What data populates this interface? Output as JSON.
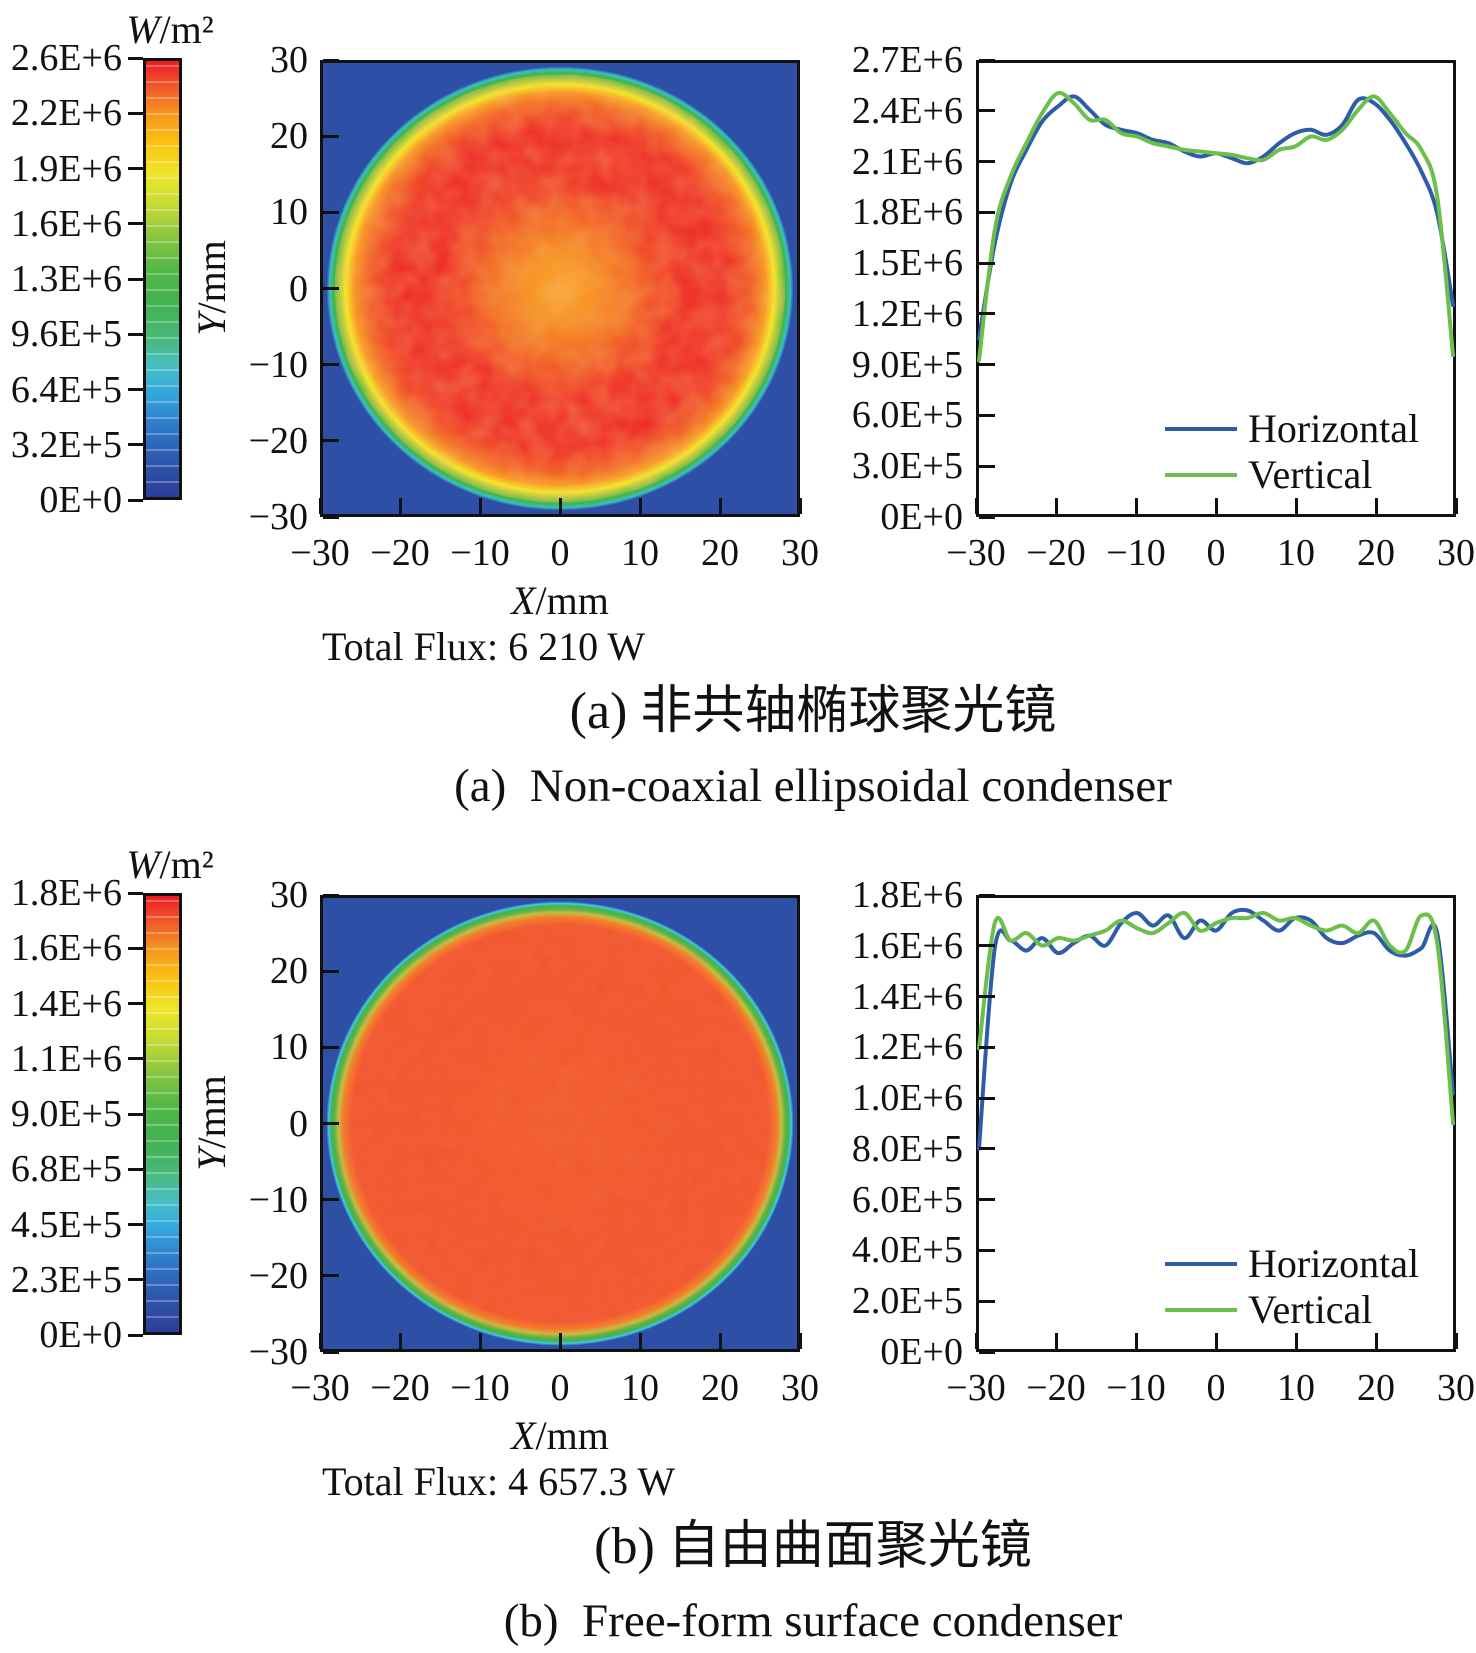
{
  "colors": {
    "line_blue": "#2F5CA8",
    "line_green": "#6CBF4B",
    "background_blue": "#2D4FA6",
    "spot_red": "#ED2424",
    "rim_green": "#3FB549",
    "frame": "#111111"
  },
  "panels": {
    "panel_a": {
      "colorbar": {
        "unit_var": "W",
        "unit_rest": "/m²",
        "tick_labels": [
          "2.6E+6",
          "2.2E+6",
          "1.9E+6",
          "1.6E+6",
          "1.3E+6",
          "9.6E+5",
          "6.4E+5",
          "3.2E+5",
          "0E+0"
        ]
      },
      "heatmap": {
        "y_tick_labels": [
          "30",
          "20",
          "10",
          "0",
          "−10",
          "−20",
          "−30"
        ],
        "x_tick_labels": [
          "−30",
          "−20",
          "−10",
          "0",
          "10",
          "20",
          "30"
        ],
        "x_var": "X",
        "x_unit": "/mm",
        "y_var": "Y",
        "y_unit": "/mm"
      },
      "profile": {
        "y_tick_labels": [
          "2.7E+6",
          "2.4E+6",
          "2.1E+6",
          "1.8E+6",
          "1.5E+6",
          "1.2E+6",
          "9.0E+5",
          "6.0E+5",
          "3.0E+5",
          "0E+0"
        ],
        "x_tick_labels": [
          "−30",
          "−20",
          "−10",
          "0",
          "10",
          "20",
          "30"
        ],
        "legend": [
          "Horizontal",
          "Vertical"
        ]
      },
      "total_flux": "Total Flux: 6 210 W",
      "caption_zh": "(a) 非共轴椭球聚光镜",
      "caption_en": "(a)  Non-coaxial ellipsoidal condenser"
    },
    "panel_b": {
      "colorbar": {
        "unit_var": "W",
        "unit_rest": "/m²",
        "tick_labels": [
          "1.8E+6",
          "1.6E+6",
          "1.4E+6",
          "1.1E+6",
          "9.0E+5",
          "6.8E+5",
          "4.5E+5",
          "2.3E+5",
          "0E+0"
        ]
      },
      "heatmap": {
        "y_tick_labels": [
          "30",
          "20",
          "10",
          "0",
          "−10",
          "−20",
          "−30"
        ],
        "x_tick_labels": [
          "−30",
          "−20",
          "−10",
          "0",
          "10",
          "20",
          "30"
        ],
        "x_var": "X",
        "x_unit": "/mm",
        "y_var": "Y",
        "y_unit": "/mm"
      },
      "profile": {
        "y_tick_labels": [
          "1.8E+6",
          "1.6E+6",
          "1.4E+6",
          "1.2E+6",
          "1.0E+6",
          "8.0E+5",
          "6.0E+5",
          "4.0E+5",
          "2.0E+5",
          "0E+0"
        ],
        "x_tick_labels": [
          "−30",
          "−20",
          "−10",
          "0",
          "10",
          "20",
          "30"
        ],
        "legend": [
          "Horizontal",
          "Vertical"
        ]
      },
      "total_flux": "Total Flux: 4 657.3 W",
      "caption_zh": "(b) 自由曲面聚光镜",
      "caption_en": "(b)  Free-form surface condenser"
    }
  },
  "chart_data": [
    {
      "id": "heatmap_a",
      "type": "heatmap",
      "title": "Irradiance distribution, non-coaxial ellipsoidal condenser",
      "xlabel": "X/mm",
      "ylabel": "Y/mm",
      "xlim": [
        -30,
        30
      ],
      "ylim": [
        -30,
        30
      ],
      "colorbar_unit": "W/m²",
      "colorbar_ticks": [
        0,
        320000,
        640000,
        960000,
        1300000,
        1600000,
        1900000,
        2200000,
        2600000
      ],
      "spot_radius_mm": 30,
      "center_value": 2100000,
      "peak_ring_value": 2500000
    },
    {
      "id": "profile_a",
      "type": "line",
      "title": "Irradiance profiles through spot centre (a)",
      "xlabel": "X/mm",
      "ylabel": "W/m²",
      "xlim": [
        -30,
        30
      ],
      "ylim": [
        0,
        2700000
      ],
      "legend_position": "lower right",
      "grid": false,
      "x": [
        -30,
        -28,
        -26,
        -24,
        -22,
        -20,
        -18,
        -16,
        -14,
        -12,
        -10,
        -8,
        -6,
        -4,
        -2,
        0,
        2,
        4,
        6,
        8,
        10,
        12,
        14,
        16,
        18,
        20,
        22,
        24,
        26,
        28,
        30
      ],
      "series": [
        {
          "name": "Horizontal",
          "color": "#2F5CA8",
          "values": [
            1050000,
            1620000,
            1980000,
            2180000,
            2350000,
            2440000,
            2500000,
            2420000,
            2330000,
            2300000,
            2280000,
            2240000,
            2220000,
            2170000,
            2140000,
            2160000,
            2130000,
            2100000,
            2140000,
            2220000,
            2280000,
            2300000,
            2270000,
            2330000,
            2480000,
            2460000,
            2360000,
            2220000,
            2050000,
            1800000,
            1250000
          ]
        },
        {
          "name": "Vertical",
          "color": "#6CBF4B",
          "values": [
            920000,
            1700000,
            2020000,
            2220000,
            2400000,
            2520000,
            2460000,
            2360000,
            2360000,
            2280000,
            2260000,
            2220000,
            2200000,
            2180000,
            2170000,
            2160000,
            2150000,
            2130000,
            2120000,
            2180000,
            2200000,
            2260000,
            2240000,
            2300000,
            2420000,
            2500000,
            2400000,
            2280000,
            2180000,
            1900000,
            950000
          ]
        }
      ]
    },
    {
      "id": "heatmap_b",
      "type": "heatmap",
      "title": "Irradiance distribution, free-form surface condenser",
      "xlabel": "X/mm",
      "ylabel": "Y/mm",
      "xlim": [
        -30,
        30
      ],
      "ylim": [
        -30,
        30
      ],
      "colorbar_unit": "W/m²",
      "colorbar_ticks": [
        0,
        230000,
        450000,
        680000,
        900000,
        1100000,
        1400000,
        1600000,
        1800000
      ],
      "spot_radius_mm": 30,
      "center_value": 1680000,
      "peak_ring_value": 1750000
    },
    {
      "id": "profile_b",
      "type": "line",
      "title": "Irradiance profiles through spot centre (b)",
      "xlabel": "X/mm",
      "ylabel": "W/m²",
      "xlim": [
        -30,
        30
      ],
      "ylim": [
        0,
        1800000
      ],
      "legend_position": "lower right",
      "grid": false,
      "x": [
        -30,
        -28,
        -26,
        -24,
        -22,
        -20,
        -18,
        -16,
        -14,
        -12,
        -10,
        -8,
        -6,
        -4,
        -2,
        0,
        2,
        4,
        6,
        8,
        10,
        12,
        14,
        16,
        18,
        20,
        22,
        24,
        26,
        28,
        30
      ],
      "series": [
        {
          "name": "Horizontal",
          "color": "#2F5CA8",
          "values": [
            800000,
            1600000,
            1630000,
            1590000,
            1640000,
            1580000,
            1620000,
            1650000,
            1610000,
            1700000,
            1740000,
            1690000,
            1730000,
            1640000,
            1710000,
            1670000,
            1740000,
            1750000,
            1710000,
            1670000,
            1720000,
            1710000,
            1640000,
            1620000,
            1650000,
            1660000,
            1590000,
            1570000,
            1600000,
            1660000,
            1020000
          ]
        },
        {
          "name": "Vertical",
          "color": "#6CBF4B",
          "values": [
            1200000,
            1700000,
            1630000,
            1660000,
            1610000,
            1640000,
            1630000,
            1650000,
            1670000,
            1710000,
            1680000,
            1660000,
            1700000,
            1740000,
            1670000,
            1700000,
            1720000,
            1720000,
            1740000,
            1710000,
            1720000,
            1690000,
            1670000,
            1690000,
            1660000,
            1710000,
            1610000,
            1590000,
            1730000,
            1620000,
            900000
          ]
        }
      ]
    }
  ]
}
